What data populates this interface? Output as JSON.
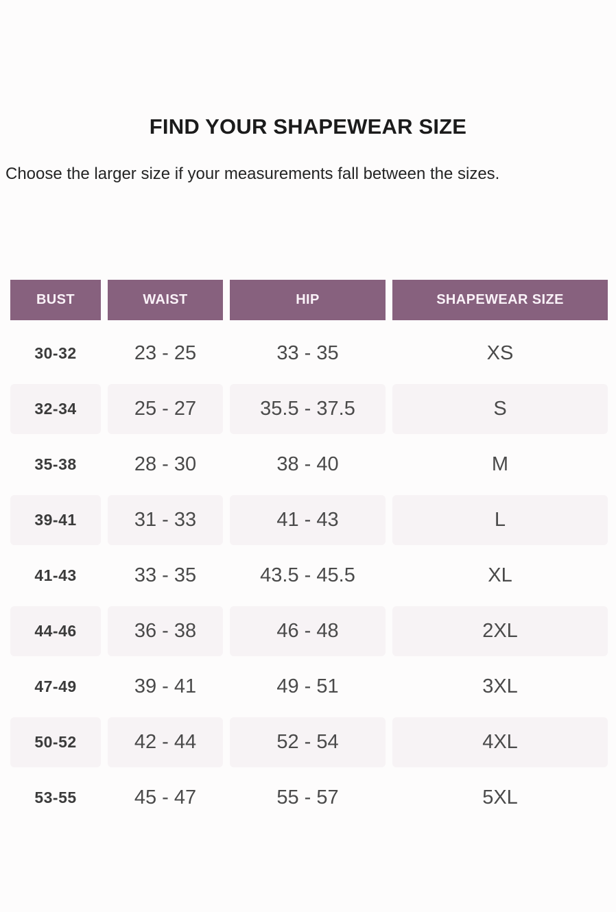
{
  "page": {
    "title": "FIND YOUR SHAPEWEAR SIZE",
    "subtitle": "Choose the larger size if your measurements fall between the sizes."
  },
  "table": {
    "columns": [
      "BUST",
      "WAIST",
      "HIP",
      "SHAPEWEAR SIZE"
    ],
    "rows": [
      {
        "bust": "30-32",
        "waist": "23 - 25",
        "hip": "33 - 35",
        "size": "XS"
      },
      {
        "bust": "32-34",
        "waist": "25 - 27",
        "hip": "35.5 - 37.5",
        "size": "S"
      },
      {
        "bust": "35-38",
        "waist": "28 - 30",
        "hip": "38 - 40",
        "size": "M"
      },
      {
        "bust": "39-41",
        "waist": "31 - 33",
        "hip": "41 - 43",
        "size": "L"
      },
      {
        "bust": "41-43",
        "waist": "33 - 35",
        "hip": "43.5 - 45.5",
        "size": "XL"
      },
      {
        "bust": "44-46",
        "waist": "36 - 38",
        "hip": "46 - 48",
        "size": "2XL"
      },
      {
        "bust": "47-49",
        "waist": "39 - 41",
        "hip": "49 - 51",
        "size": "3XL"
      },
      {
        "bust": "50-52",
        "waist": "42 - 44",
        "hip": "52 - 54",
        "size": "4XL"
      },
      {
        "bust": "53-55",
        "waist": "45 - 47",
        "hip": "55 - 57",
        "size": "5XL"
      }
    ]
  },
  "colors": {
    "header_bg": "#87617e",
    "header_text": "#faf2f8",
    "shaded_row_bg": "#f7f3f5",
    "page_bg": "#fdfcfc",
    "title_text": "#1b1b1b",
    "subtitle_text": "#242424",
    "bust_text": "#3b3b3b",
    "data_text": "#4a4a4a"
  }
}
